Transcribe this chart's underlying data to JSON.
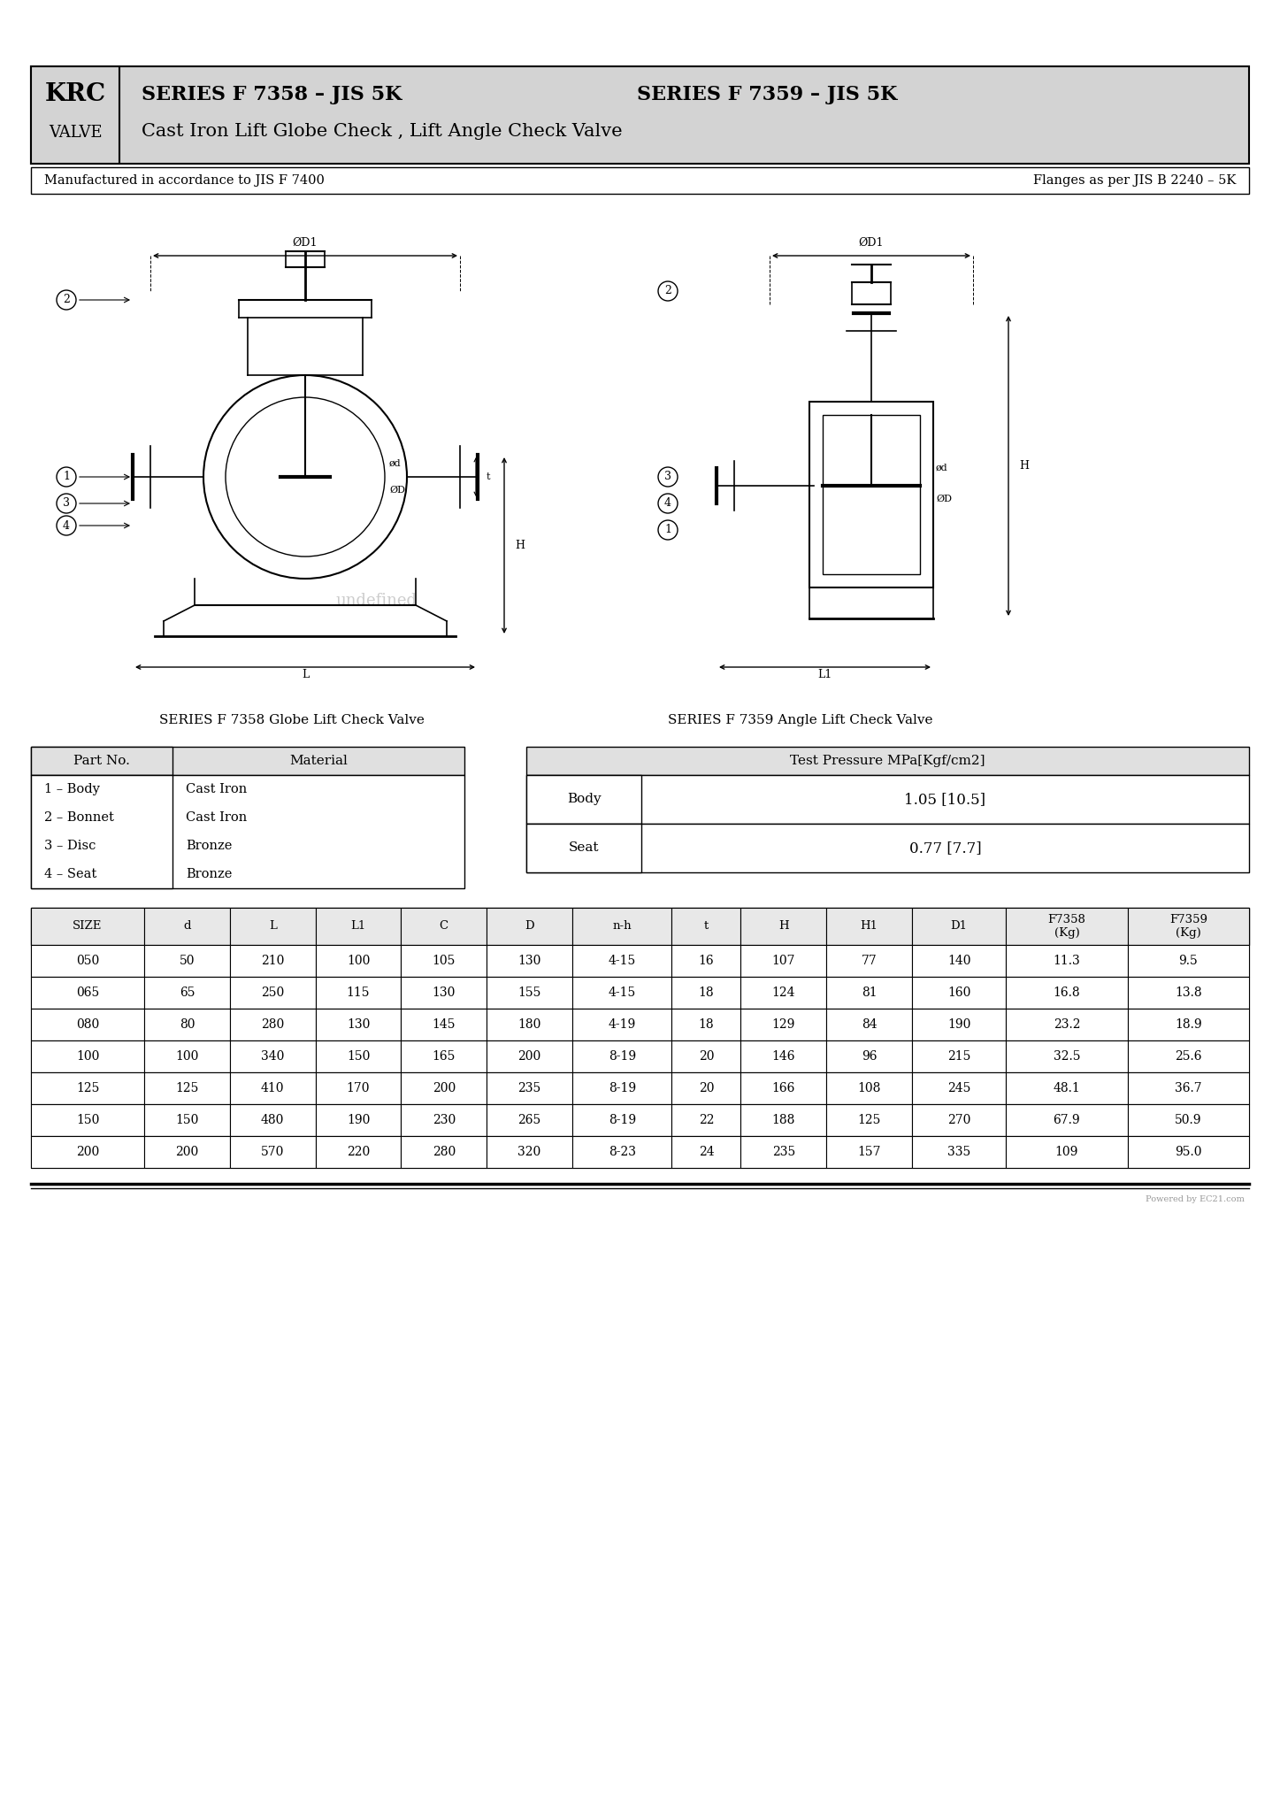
{
  "bg_color": "#ffffff",
  "header_bg": "#d3d3d3",
  "title_krc": "KRC",
  "title_valve": "VALVE",
  "title_series1": "SERIES F 7358 – JIS 5K",
  "title_series2": "SERIES F 7359 – JIS 5K",
  "title_subtitle": "Cast Iron Lift Globe Check , Lift Angle Check Valve",
  "note_left": "Manufactured in accordance to JIS F 7400",
  "note_right": "Flanges as per JIS B 2240 – 5K",
  "label_series1": "SERIES F 7358 Globe Lift Check Valve",
  "label_series2": "SERIES F 7359 Angle Lift Check Valve",
  "parts_table_headers": [
    "Part No.",
    "Material"
  ],
  "parts_data": [
    [
      "1 – Body",
      "Cast Iron"
    ],
    [
      "2 – Bonnet",
      "Cast Iron"
    ],
    [
      "3 – Disc",
      "Bronze"
    ],
    [
      "4 – Seat",
      "Bronze"
    ]
  ],
  "pressure_header": "Test Pressure MPa[Kgf/cm2]",
  "pressure_data": [
    [
      "Body",
      "1.05 [10.5]"
    ],
    [
      "Seat",
      "0.77 [7.7]"
    ]
  ],
  "size_table_headers": [
    "SIZE",
    "d",
    "L",
    "L1",
    "C",
    "D",
    "n-h",
    "t",
    "H",
    "H1",
    "D1",
    "F7358\n(Kg)",
    "F7359\n(Kg)"
  ],
  "size_data": [
    [
      "050",
      "50",
      "210",
      "100",
      "105",
      "130",
      "4-15",
      "16",
      "107",
      "77",
      "140",
      "11.3",
      "9.5"
    ],
    [
      "065",
      "65",
      "250",
      "115",
      "130",
      "155",
      "4-15",
      "18",
      "124",
      "81",
      "160",
      "16.8",
      "13.8"
    ],
    [
      "080",
      "80",
      "280",
      "130",
      "145",
      "180",
      "4-19",
      "18",
      "129",
      "84",
      "190",
      "23.2",
      "18.9"
    ],
    [
      "100",
      "100",
      "340",
      "150",
      "165",
      "200",
      "8-19",
      "20",
      "146",
      "96",
      "215",
      "32.5",
      "25.6"
    ],
    [
      "125",
      "125",
      "410",
      "170",
      "200",
      "235",
      "8-19",
      "20",
      "166",
      "108",
      "245",
      "48.1",
      "36.7"
    ],
    [
      "150",
      "150",
      "480",
      "190",
      "230",
      "265",
      "8-19",
      "22",
      "188",
      "125",
      "270",
      "67.9",
      "50.9"
    ],
    [
      "200",
      "200",
      "570",
      "220",
      "280",
      "320",
      "8-23",
      "24",
      "235",
      "157",
      "335",
      "109",
      "95.0"
    ]
  ],
  "watermark": "undefined"
}
